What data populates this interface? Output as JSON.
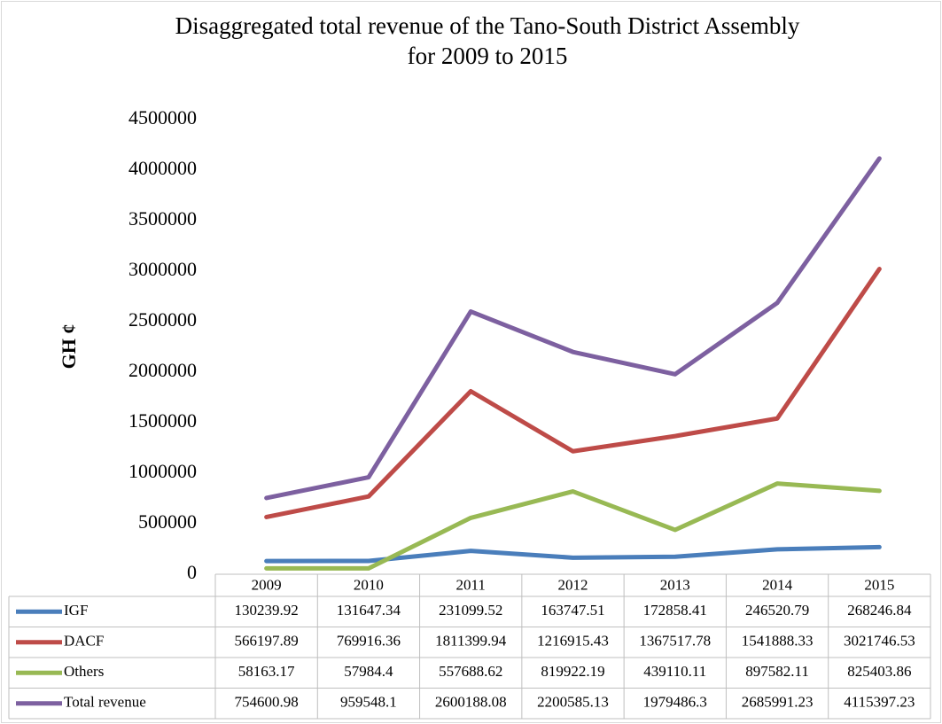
{
  "chart_data": {
    "type": "line",
    "title": "Disaggregated total revenue of the Tano-South District Assembly for 2009 to 2015",
    "y_label": "GH ¢",
    "categories": [
      "2009",
      "2010",
      "2011",
      "2012",
      "2013",
      "2014",
      "2015"
    ],
    "series": [
      {
        "name": "IGF",
        "color": "#4a7ebb",
        "values": [
          130239.92,
          131647.34,
          231099.52,
          163747.51,
          172858.41,
          246520.79,
          268246.84
        ]
      },
      {
        "name": "DACF",
        "color": "#be4b48",
        "values": [
          566197.89,
          769916.36,
          1811399.94,
          1216915.43,
          1367517.78,
          1541888.33,
          3021746.53
        ]
      },
      {
        "name": "Others",
        "color": "#98b954",
        "values": [
          58163.17,
          57984.4,
          557688.62,
          819922.19,
          439110.11,
          897582.11,
          825403.86
        ]
      },
      {
        "name": "Total revenue",
        "color": "#7d60a0",
        "values": [
          754600.98,
          959548.1,
          2600188.08,
          2200585.13,
          1979486.3,
          2685991.23,
          4115397.23
        ]
      }
    ],
    "ylim": [
      0,
      4500000
    ],
    "yticks": [
      0,
      500000,
      1000000,
      1500000,
      2000000,
      2500000,
      3000000,
      3500000,
      4000000,
      4500000
    ],
    "grid": false,
    "data_table": true
  }
}
